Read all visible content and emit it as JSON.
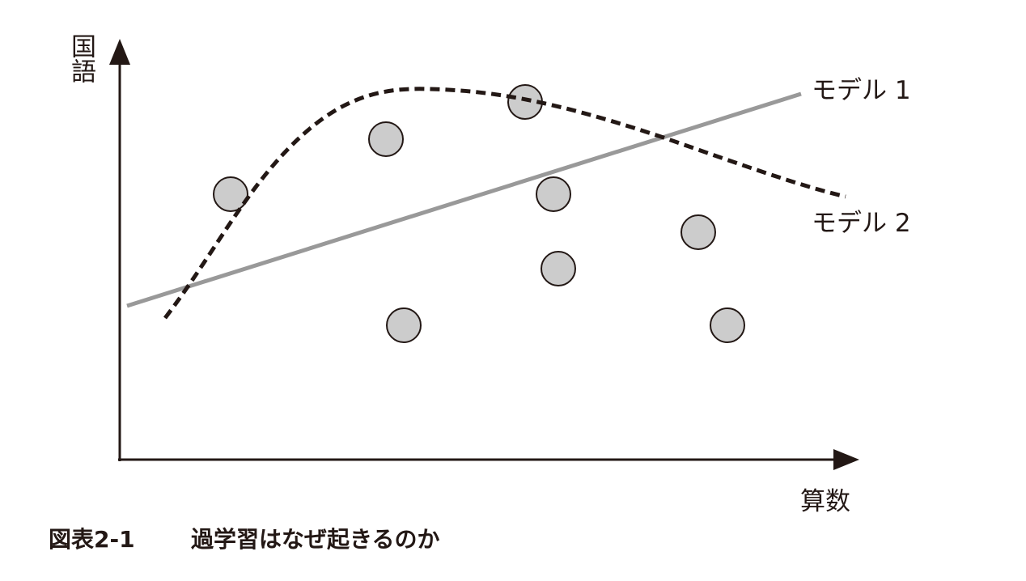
{
  "axes": {
    "y_label": "国語",
    "x_label": "算数"
  },
  "models": [
    {
      "label": "モデル 1"
    },
    {
      "label": "モデル 2"
    }
  ],
  "caption": {
    "number": "図表2-1",
    "title": "過学習はなぜ起きるのか"
  }
}
